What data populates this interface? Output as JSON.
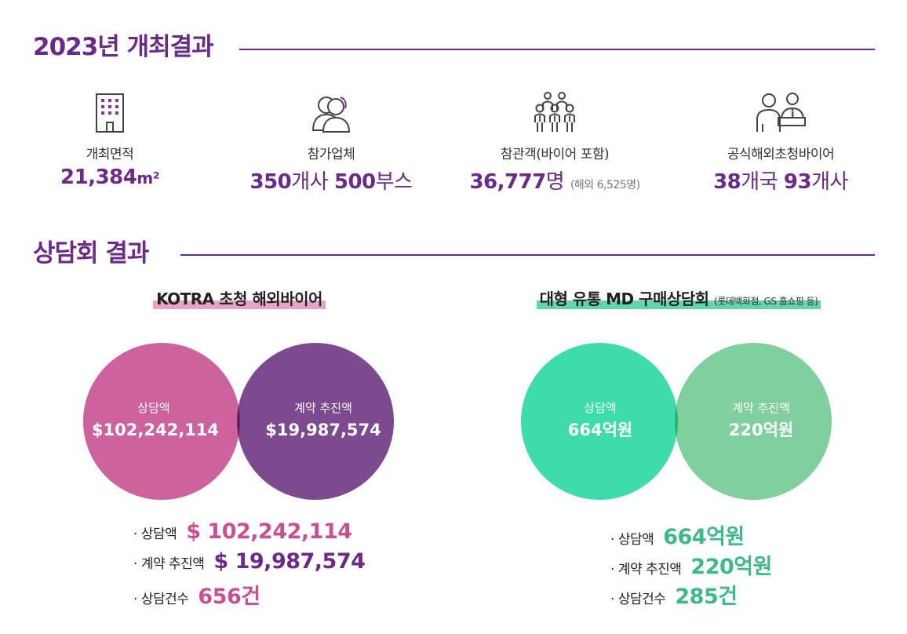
{
  "section1": {
    "title": "2023년 개최결과"
  },
  "stats": [
    {
      "icon": "building-icon",
      "label": "개최면적",
      "value_bold": "21,384",
      "value_unit": "m²",
      "value_note": ""
    },
    {
      "icon": "people-icon",
      "label": "참가업체",
      "value_bold": "350",
      "value_unit": "개사 ",
      "value_bold2": "500",
      "value_unit2": "부스"
    },
    {
      "icon": "crowd-icon",
      "label": "참관객(바이어 포함)",
      "value_bold": "36,777",
      "value_unit": "명 ",
      "value_note": "(해외 6,525명)"
    },
    {
      "icon": "buyer-desk-icon",
      "label": "공식해외초청바이어",
      "value_bold": "38",
      "value_unit": "개국 ",
      "value_bold2": "93",
      "value_unit2": "개사"
    }
  ],
  "section2": {
    "title": "상담회 결과"
  },
  "kotra": {
    "title": "KOTRA 초청 해외바이어",
    "underline_color": "#e7a4c8",
    "left_circle": {
      "label": "상담액",
      "value": "$102,242,114",
      "color": "#cc639f"
    },
    "right_circle": {
      "label": "계약 추진액",
      "value": "$19,987,574",
      "color": "#7c4a8f"
    },
    "overlap_color": "#6b1d5e",
    "list": [
      {
        "label": "상담액",
        "value": "$ 102,242,114",
        "color": "#c94f93"
      },
      {
        "label": "계약 추진액",
        "value": "$ 19,987,574",
        "color": "#6a2a87"
      },
      {
        "label": "상담건수",
        "value": "656건",
        "color": "#c94f93"
      }
    ]
  },
  "md": {
    "title": "대형 유통 MD 구매상담회",
    "title_note": "(롯데백화점, GS 홈쇼핑 등)",
    "underline_color": "#63d6a9",
    "left_circle": {
      "label": "상담액",
      "value": "664억원",
      "color": "#3fdcab"
    },
    "right_circle": {
      "label": "계약 추진액",
      "value": "220억원",
      "color": "#80cf9c"
    },
    "overlap_color": "#27b470",
    "list": [
      {
        "label": "상담액",
        "value": "664억원",
        "color": "#3fb88c"
      },
      {
        "label": "계약 추진액",
        "value": "220억원",
        "color": "#3fb88c"
      },
      {
        "label": "상담건수",
        "value": "285건",
        "color": "#3fb88c"
      }
    ]
  }
}
